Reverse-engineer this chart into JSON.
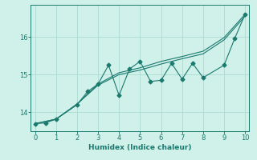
{
  "xlabel": "Humidex (Indice chaleur)",
  "ylabel": "",
  "x_jagged": [
    0,
    0.5,
    1,
    2,
    2.5,
    3,
    3.5,
    4,
    4.5,
    5,
    5.5,
    6,
    6.5,
    7,
    7.5,
    8,
    9,
    9.5,
    10
  ],
  "y_jagged": [
    13.7,
    13.72,
    13.82,
    14.2,
    14.55,
    14.75,
    15.25,
    14.45,
    15.15,
    15.35,
    14.82,
    14.85,
    15.3,
    14.88,
    15.3,
    14.92,
    15.25,
    15.95,
    16.6
  ],
  "x_smooth": [
    0,
    1,
    2,
    3,
    4,
    5,
    6,
    7,
    8,
    9,
    10
  ],
  "y_smooth1": [
    13.7,
    13.82,
    14.22,
    14.72,
    15.0,
    15.12,
    15.28,
    15.42,
    15.55,
    15.92,
    16.55
  ],
  "y_smooth2": [
    13.7,
    13.82,
    14.22,
    14.75,
    15.05,
    15.18,
    15.35,
    15.48,
    15.62,
    15.98,
    16.6
  ],
  "line_color": "#1a7a6e",
  "background_color": "#d0f0ea",
  "grid_color": "#b0ddd6",
  "xlim": [
    -0.2,
    10.2
  ],
  "ylim": [
    13.5,
    16.85
  ],
  "yticks": [
    14,
    15,
    16
  ],
  "xticks": [
    0,
    1,
    2,
    3,
    4,
    5,
    6,
    7,
    8,
    9,
    10
  ],
  "marker": "D",
  "markersize": 2.5
}
